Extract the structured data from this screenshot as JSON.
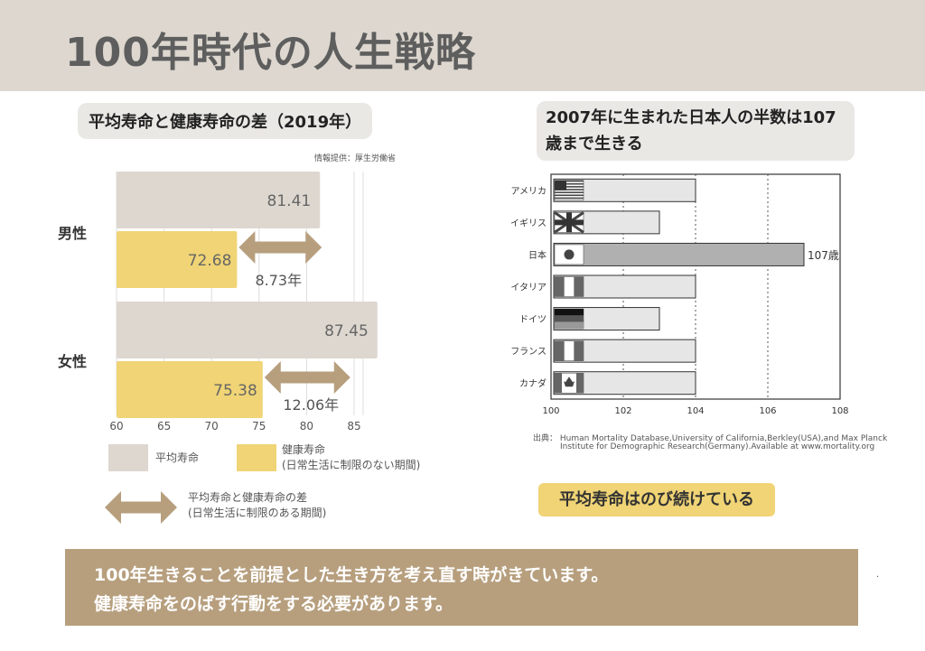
{
  "page": {
    "title": "100年時代の人生戦略"
  },
  "left": {
    "title": "平均寿命と健康寿命の差（2019年）",
    "source": "情報提供：厚生労働省"
  },
  "right": {
    "title": "2007年に生まれた日本人の半数は107歳まで生きる",
    "source_line1": "出典：  Human Mortality Database,University of California,Berkley(USA),and Max Planck",
    "source_line2": "Institute for Demographic Research(Germany).Available at www.mortality.org",
    "callout": "平均寿命はのび続けている"
  },
  "legend": {
    "avg": "平均寿命",
    "healthy_line1": "健康寿命",
    "healthy_line2": "(日常生活に制限のない期間)",
    "diff_line1": "平均寿命と健康寿命の差",
    "diff_line2": "(日常生活に制限のある期間)"
  },
  "footer": {
    "line1": "100年生きることを前提とした生き方を考え直す時がきています。",
    "line2": "健康寿命をのばす行動をする必要があります。"
  },
  "colors": {
    "avg_bar": "#ddd7cf",
    "healthy_bar": "#f0d475",
    "arrow": "#b79f7e",
    "right_bar": "#e6e6e6",
    "japan_bar": "#b0b0b0"
  },
  "chart_data": [
    {
      "type": "bar",
      "orientation": "horizontal",
      "categories": [
        "男性",
        "女性"
      ],
      "series": [
        {
          "name": "平均寿命",
          "values": [
            81.41,
            87.45
          ],
          "labels": [
            "81.41",
            "87.45"
          ]
        },
        {
          "name": "健康寿命",
          "values": [
            72.68,
            75.38
          ],
          "labels": [
            "72.68",
            "75.38"
          ]
        }
      ],
      "differences": [
        "8.73年",
        "12.06年"
      ],
      "xlim": [
        60,
        85
      ],
      "xticks": [
        60,
        65,
        70,
        75,
        80,
        85
      ],
      "xtick_labels": [
        "60",
        "65",
        "70",
        "75",
        "80",
        "85"
      ],
      "grid": true
    },
    {
      "type": "bar",
      "orientation": "horizontal",
      "categories": [
        "アメリカ",
        "イギリス",
        "日本",
        "イタリア",
        "ドイツ",
        "フランス",
        "カナダ"
      ],
      "flags": [
        "usa-flag-icon",
        "uk-flag-icon",
        "japan-flag-icon",
        "italy-flag-icon",
        "germany-flag-icon",
        "france-flag-icon",
        "canada-flag-icon"
      ],
      "values": [
        104,
        103,
        107,
        104,
        103,
        104,
        104
      ],
      "annotation": "107歳",
      "xlim": [
        100,
        108
      ],
      "xticks": [
        100,
        102,
        104,
        106,
        108
      ],
      "xtick_labels": [
        "100",
        "102",
        "104",
        "106",
        "108"
      ],
      "grid": "dashed vertical"
    }
  ]
}
